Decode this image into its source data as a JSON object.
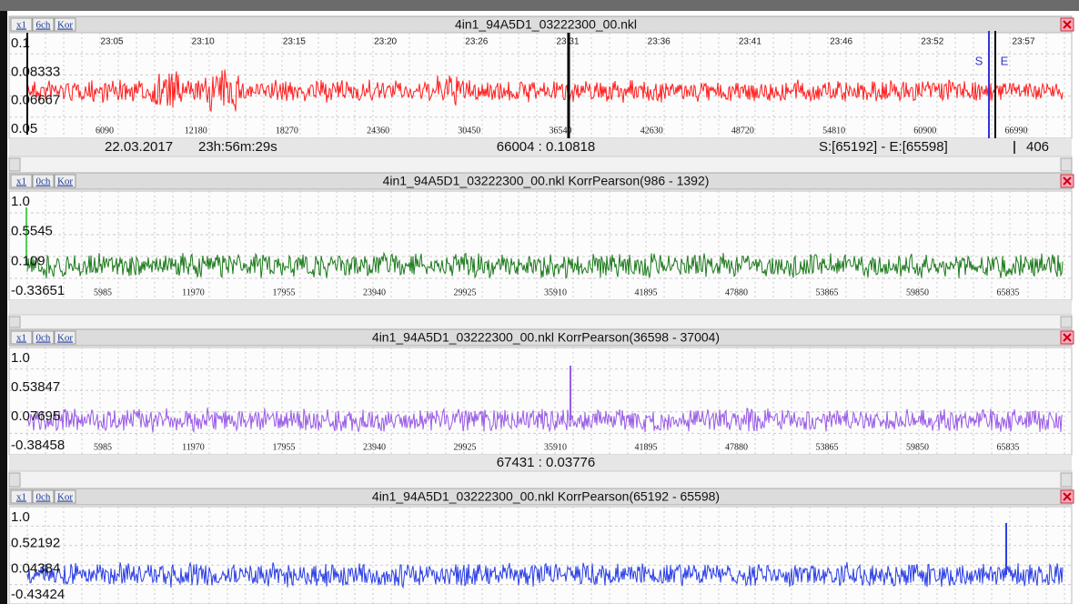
{
  "panels": [
    {
      "buttons": [
        "x1",
        "6ch",
        "Kor"
      ],
      "title": "4in1_94A5D1_03222300_00.nkl",
      "color": "#ff1f1f",
      "ylabels": [
        "0.1",
        "0.08333",
        "0.06667",
        "0.05"
      ],
      "time_labels": [
        "23:05",
        "23:10",
        "23:15",
        "23:20",
        "23:26",
        "23:31",
        "23:36",
        "23:41",
        "23:46",
        "23:52",
        "23:57"
      ],
      "sample_labels": [
        "6090",
        "12180",
        "18270",
        "24360",
        "30450",
        "36540",
        "42630",
        "48720",
        "54810",
        "60900",
        "66990"
      ],
      "markers": [
        "S",
        "E"
      ],
      "status": {
        "date": "22.03.2017",
        "time": "23h:56m:29s",
        "cursor": "66004 : 0.10818",
        "range": "S:[65192] - E:[65598]",
        "length": "406"
      }
    },
    {
      "buttons": [
        "x1",
        "0ch",
        "Kor"
      ],
      "title": "4in1_94A5D1_03222300_00.nkl KorrPearson(986 - 1392)",
      "color": "#1d7a1d",
      "ylabels": [
        "1.0",
        "0.5545",
        "0.109",
        "-0.33651"
      ],
      "sample_labels": [
        "5985",
        "11970",
        "17955",
        "23940",
        "29925",
        "35910",
        "41895",
        "47880",
        "53865",
        "59850",
        "65835"
      ]
    },
    {
      "buttons": [
        "x1",
        "0ch",
        "Kor"
      ],
      "title": "4in1_94A5D1_03222300_00.nkl KorrPearson(36598 - 37004)",
      "color": "#9a5ce6",
      "ylabels": [
        "1.0",
        "0.53847",
        "0.07695",
        "-0.38458"
      ],
      "sample_labels": [
        "5985",
        "11970",
        "17955",
        "23940",
        "29925",
        "35910",
        "41895",
        "47880",
        "53865",
        "59850",
        "65835"
      ],
      "status": {
        "cursor": "67431 : 0.03776"
      }
    },
    {
      "buttons": [
        "x1",
        "0ch",
        "Kor"
      ],
      "title": "4in1_94A5D1_03222300_00.nkl KorrPearson(65192 - 65598)",
      "color": "#2b3fe6",
      "ylabels": [
        "1.0",
        "0.52192",
        "0.04384",
        "-0.43424"
      ]
    }
  ]
}
